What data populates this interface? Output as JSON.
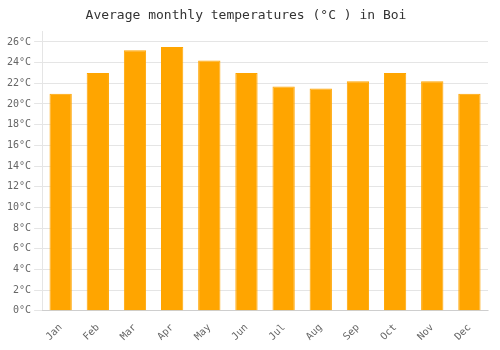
{
  "chart_data": {
    "type": "bar",
    "title": "Average monthly temperatures (°C ) in Boi",
    "categories": [
      "Jan",
      "Feb",
      "Mar",
      "Apr",
      "May",
      "Jun",
      "Jul",
      "Aug",
      "Sep",
      "Oct",
      "Nov",
      "Dec"
    ],
    "values": [
      21.0,
      23.0,
      25.2,
      25.5,
      24.2,
      23.0,
      21.7,
      21.5,
      22.2,
      23.0,
      22.2,
      21.0
    ],
    "color": "#FFA500",
    "ylim": [
      0,
      27
    ],
    "yticks": [
      {
        "value": 0,
        "label": "0°C"
      },
      {
        "value": 2,
        "label": "2°C"
      },
      {
        "value": 4,
        "label": "4°C"
      },
      {
        "value": 6,
        "label": "6°C"
      },
      {
        "value": 8,
        "label": "8°C"
      },
      {
        "value": 10,
        "label": "10°C"
      },
      {
        "value": 12,
        "label": "12°C"
      },
      {
        "value": 14,
        "label": "14°C"
      },
      {
        "value": 16,
        "label": "16°C"
      },
      {
        "value": 18,
        "label": "18°C"
      },
      {
        "value": 20,
        "label": "20°C"
      },
      {
        "value": 22,
        "label": "22°C"
      },
      {
        "value": 24,
        "label": "24°C"
      },
      {
        "value": 26,
        "label": "26°C"
      }
    ],
    "grid": true
  }
}
